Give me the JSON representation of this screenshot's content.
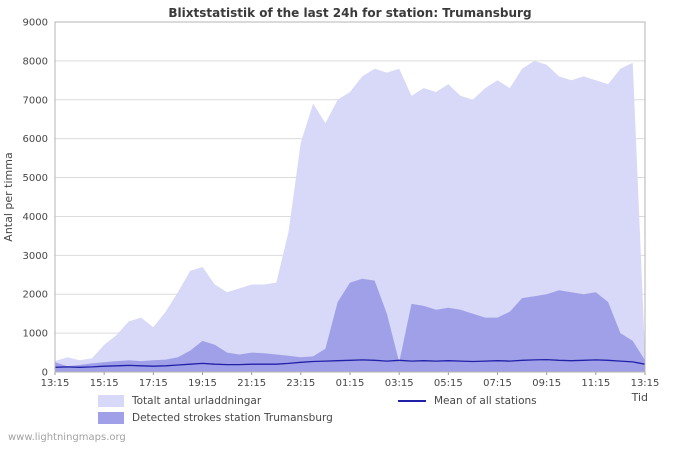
{
  "title": "Blixtstatistik of the last 24h for station: Trumansburg",
  "watermark": "www.lightningmaps.org",
  "axes": {
    "y_label": "Antal per timma",
    "x_label": "Tid"
  },
  "legend": [
    {
      "label": "Totalt antal urladdningar",
      "type": "area",
      "color": "#d8d8f8"
    },
    {
      "label": "Mean of all stations",
      "type": "line",
      "color": "#2121a8"
    },
    {
      "label": "Detected strokes station Trumansburg",
      "type": "area",
      "color": "#a0a0e8"
    }
  ],
  "chart_data": {
    "type": "area",
    "title": "Blixtstatistik of the last 24h for station: Trumansburg",
    "xlabel": "Tid",
    "ylabel": "Antal per timma",
    "ylim": [
      0,
      9000
    ],
    "y_ticks": [
      0,
      1000,
      2000,
      3000,
      4000,
      5000,
      6000,
      7000,
      8000,
      9000
    ],
    "x_tick_labels": [
      "13:15",
      "15:15",
      "17:15",
      "19:15",
      "21:15",
      "23:15",
      "01:15",
      "03:15",
      "05:15",
      "07:15",
      "09:15",
      "11:15",
      "13:15"
    ],
    "x_step_hours": 0.5,
    "grid": "horizontal",
    "legend_position": "bottom",
    "series": [
      {
        "name": "Totalt antal urladdningar",
        "type": "area",
        "color": "#d8d8f8",
        "values": [
          280,
          380,
          300,
          350,
          700,
          950,
          1300,
          1400,
          1150,
          1550,
          2050,
          2600,
          2700,
          2250,
          2050,
          2150,
          2250,
          2250,
          2300,
          3600,
          5900,
          6900,
          6400,
          7000,
          7200,
          7600,
          7800,
          7700,
          7800,
          7100,
          7300,
          7200,
          7400,
          7100,
          7000,
          7300,
          7500,
          7300,
          7800,
          8000,
          7900,
          7600,
          7500,
          7600,
          7500,
          7400,
          7800,
          7950,
          500
        ]
      },
      {
        "name": "Detected strokes station Trumansburg",
        "type": "area",
        "color": "#a0a0e8",
        "values": [
          250,
          150,
          180,
          220,
          250,
          280,
          300,
          280,
          300,
          320,
          380,
          550,
          800,
          700,
          500,
          450,
          500,
          480,
          450,
          420,
          380,
          400,
          600,
          1800,
          2300,
          2400,
          2350,
          1500,
          250,
          1750,
          1700,
          1600,
          1650,
          1600,
          1500,
          1400,
          1400,
          1550,
          1900,
          1950,
          2000,
          2100,
          2050,
          2000,
          2050,
          1800,
          1000,
          800,
          300
        ]
      },
      {
        "name": "Mean of all stations",
        "type": "line",
        "color": "#2121a8",
        "values": [
          120,
          130,
          120,
          130,
          150,
          160,
          170,
          160,
          150,
          160,
          180,
          200,
          220,
          200,
          190,
          190,
          200,
          200,
          200,
          220,
          250,
          270,
          280,
          290,
          300,
          310,
          300,
          280,
          300,
          280,
          290,
          280,
          290,
          280,
          270,
          280,
          290,
          280,
          300,
          310,
          320,
          300,
          290,
          300,
          310,
          300,
          280,
          260,
          200
        ]
      }
    ]
  }
}
